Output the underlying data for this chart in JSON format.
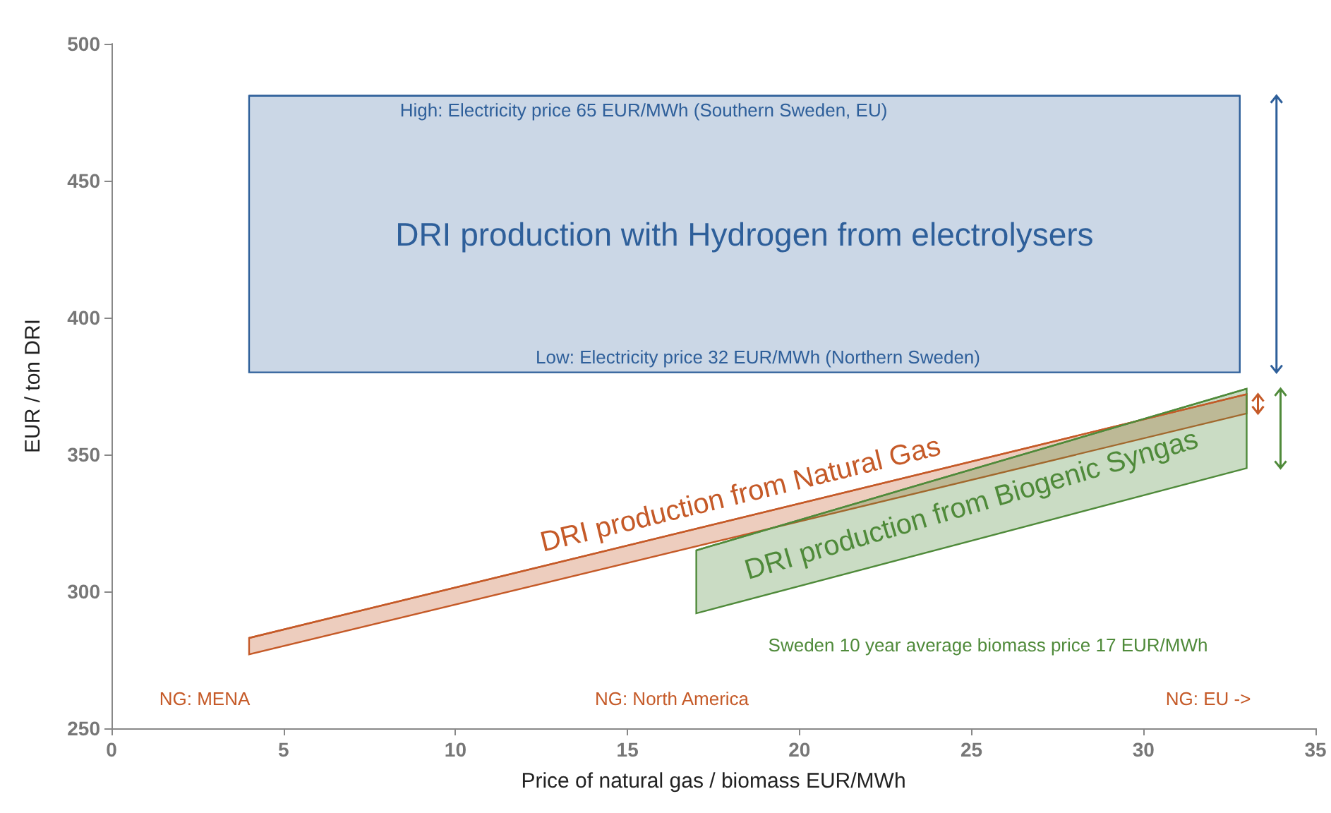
{
  "chart_data": {
    "type": "line",
    "marker": "none",
    "xlabel": "Price of natural gas / biomass EUR/MWh",
    "ylabel": "EUR / ton DRI",
    "xlim": [
      0,
      35
    ],
    "xticks": [
      0,
      5,
      10,
      15,
      20,
      25,
      30,
      35
    ],
    "ylim": [
      250,
      500
    ],
    "yticks": [
      250,
      300,
      350,
      400,
      450,
      500
    ],
    "grid": false,
    "series": [
      {
        "name": "DRI production with Hydrogen from electrolysers",
        "color": "#2e5f9a",
        "x": [
          4,
          32.8
        ],
        "values": [
          481,
          481
        ],
        "lower": [
          380,
          380
        ],
        "upper": [
          481,
          481
        ]
      },
      {
        "name": "DRI production from Natural Gas",
        "color": "#c55a28",
        "x": [
          4,
          33
        ],
        "values": [
          283,
          372
        ],
        "lower": [
          277,
          365
        ],
        "upper": [
          283,
          372
        ]
      },
      {
        "name": "DRI production from Biogenic Syngas",
        "color": "#4f8a3a",
        "x": [
          17,
          33
        ],
        "values": [
          315,
          374
        ],
        "lower": [
          292,
          345
        ],
        "upper": [
          315,
          374
        ]
      }
    ],
    "annotations": [
      "High: Electricity price 65 EUR/MWh (Southern Sweden, EU)",
      "Low: Electricity price 32 EUR/MWh (Northern Sweden)",
      "Sweden 10 year average biomass price 17 EUR/MWh",
      "NG: MENA",
      "NG: North America",
      "NG: EU ->"
    ]
  }
}
